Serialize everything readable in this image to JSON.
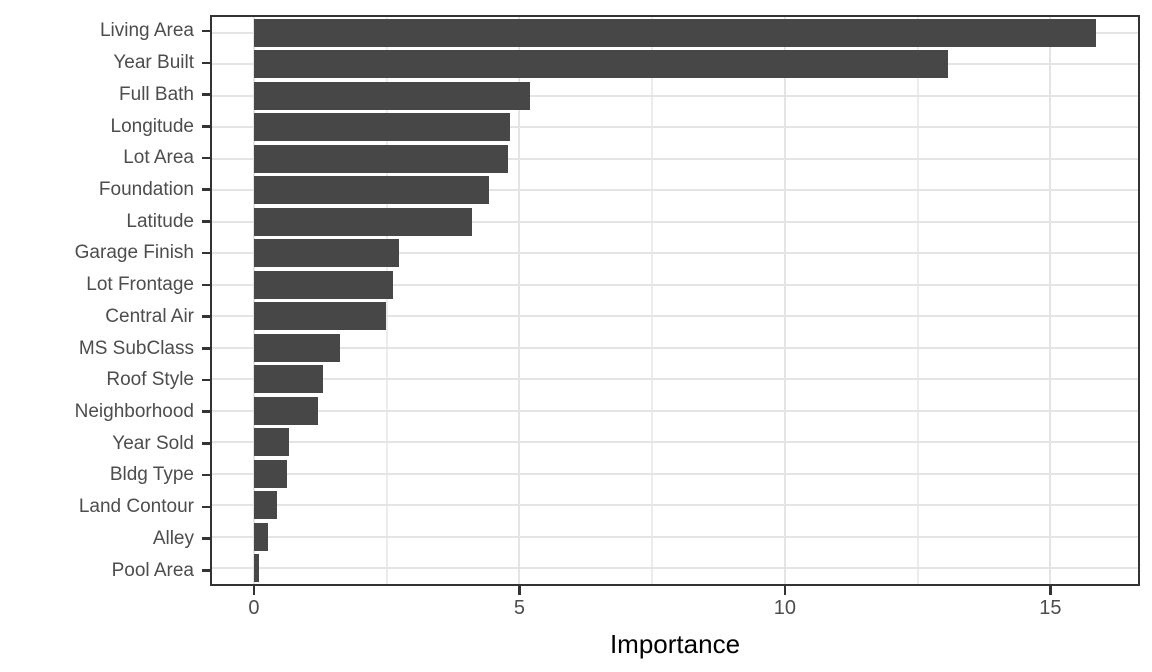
{
  "chart_data": {
    "type": "bar",
    "orientation": "horizontal",
    "title": "",
    "xlabel": "Importance",
    "ylabel": "",
    "categories": [
      "Living Area",
      "Year Built",
      "Full Bath",
      "Longitude",
      "Lot Area",
      "Foundation",
      "Latitude",
      "Garage Finish",
      "Lot Frontage",
      "Central Air",
      "MS SubClass",
      "Roof Style",
      "Neighborhood",
      "Year Sold",
      "Bldg Type",
      "Land Contour",
      "Alley",
      "Pool Area"
    ],
    "values": [
      15.85,
      13.08,
      5.19,
      4.83,
      4.79,
      4.43,
      4.11,
      2.74,
      2.61,
      2.48,
      1.62,
      1.3,
      1.21,
      0.66,
      0.62,
      0.43,
      0.26,
      0.09
    ],
    "xlim": [
      -0.79,
      16.65
    ],
    "x_major_ticks": [
      0,
      5,
      10,
      15
    ],
    "x_minor_gridlines": [
      2.5,
      7.5,
      12.5
    ],
    "grid": "on",
    "legend": "none",
    "colors": {
      "bar_fill": "#474747",
      "panel_border": "#333333",
      "grid_major": "#e4e4e4",
      "grid_minor": "#ececec",
      "tick_mark": "#333333",
      "axis_text": "#4d4d4d",
      "axis_title": "#000000"
    }
  }
}
